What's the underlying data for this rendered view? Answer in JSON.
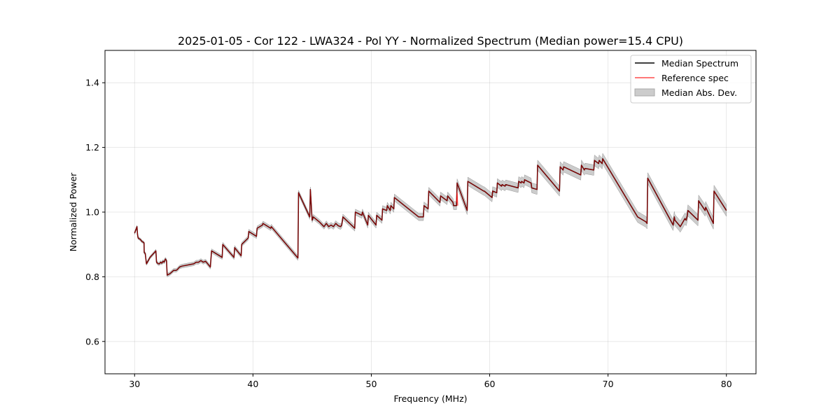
{
  "chart_data": {
    "type": "line",
    "title": "2025-01-05 - Cor 122 - LWA324 - Pol YY - Normalized Spectrum (Median power=15.4 CPU)",
    "xlabel": "Frequency (MHz)",
    "ylabel": "Normalized Power",
    "xlim": [
      27.5,
      82.5
    ],
    "ylim": [
      0.5,
      1.5
    ],
    "xticks": [
      30,
      40,
      50,
      60,
      70,
      80
    ],
    "yticks": [
      0.6,
      0.8,
      1.0,
      1.2,
      1.4
    ],
    "grid": true,
    "legend_position": "top-right",
    "series": [
      {
        "name": "Median Spectrum",
        "color": "#000000",
        "x": [
          30.0,
          30.2,
          30.25,
          30.3,
          30.5,
          30.6,
          30.8,
          30.81,
          30.9,
          31.0,
          31.05,
          31.3,
          31.8,
          31.85,
          32.0,
          32.1,
          32.2,
          32.3,
          32.4,
          32.5,
          32.6,
          32.7,
          32.75,
          33.0,
          33.3,
          33.5,
          33.6,
          33.8,
          34.0,
          35.0,
          35.2,
          35.4,
          35.6,
          35.8,
          36.0,
          36.4,
          36.5,
          37.4,
          37.45,
          38.4,
          38.45,
          39.0,
          39.05,
          39.6,
          39.65,
          40.3,
          40.35,
          40.8,
          40.85,
          41.5,
          41.55,
          43.8,
          43.85,
          44.8,
          44.85,
          45.0,
          45.05,
          45.1,
          45.6,
          46.0,
          46.2,
          46.4,
          46.6,
          46.8,
          47.0,
          47.2,
          47.4,
          47.5,
          47.6,
          48.6,
          48.65,
          49.2,
          49.25,
          49.7,
          49.75,
          50.4,
          50.45,
          50.9,
          50.95,
          51.3,
          51.35,
          51.6,
          51.65,
          51.9,
          51.95,
          54.0,
          54.05,
          54.4,
          54.45,
          54.8,
          54.85,
          55.8,
          55.85,
          56.4,
          56.45,
          56.9,
          56.95,
          57.2,
          57.25,
          58.1,
          58.15,
          59.5,
          59.55,
          60.2,
          60.25,
          60.6,
          60.65,
          61.0,
          61.05,
          61.3,
          61.35,
          62.4,
          62.45,
          62.65,
          62.7,
          62.9,
          62.95,
          63.5,
          63.55,
          64.0,
          64.05,
          65.9,
          65.95,
          66.2,
          66.25,
          67.7,
          67.75,
          68.0,
          68.05,
          68.8,
          68.85,
          69.2,
          69.25,
          69.5,
          69.55,
          72.5,
          73.2,
          73.3,
          73.35,
          75.5,
          75.6,
          75.65,
          76.0,
          76.1,
          76.5,
          76.6,
          76.7,
          76.75,
          77.6,
          77.65,
          78.2,
          78.25,
          78.9,
          78.95,
          80.0
        ],
        "y": [
          0.935,
          0.955,
          0.93,
          0.92,
          0.915,
          0.91,
          0.905,
          0.875,
          0.872,
          0.84,
          0.843,
          0.86,
          0.88,
          0.845,
          0.84,
          0.84,
          0.845,
          0.842,
          0.848,
          0.845,
          0.855,
          0.85,
          0.805,
          0.81,
          0.82,
          0.82,
          0.822,
          0.83,
          0.833,
          0.84,
          0.845,
          0.845,
          0.85,
          0.845,
          0.848,
          0.83,
          0.88,
          0.86,
          0.9,
          0.86,
          0.89,
          0.865,
          0.9,
          0.92,
          0.94,
          0.925,
          0.95,
          0.96,
          0.965,
          0.95,
          0.955,
          0.858,
          1.06,
          0.985,
          1.07,
          0.975,
          0.98,
          0.985,
          0.97,
          0.955,
          0.965,
          0.955,
          0.96,
          0.955,
          0.965,
          0.958,
          0.955,
          0.96,
          0.985,
          0.95,
          1.0,
          0.99,
          1.0,
          0.96,
          0.99,
          0.96,
          0.99,
          0.975,
          1.01,
          1.005,
          1.02,
          1.005,
          1.02,
          1.01,
          1.045,
          0.985,
          0.985,
          0.985,
          1.02,
          1.01,
          1.065,
          1.03,
          1.05,
          1.035,
          1.05,
          1.03,
          1.02,
          1.02,
          1.09,
          1.005,
          1.095,
          1.065,
          1.065,
          1.045,
          1.065,
          1.06,
          1.09,
          1.08,
          1.085,
          1.08,
          1.085,
          1.075,
          1.095,
          1.09,
          1.095,
          1.09,
          1.1,
          1.09,
          1.075,
          1.07,
          1.145,
          1.065,
          1.14,
          1.13,
          1.14,
          1.115,
          1.145,
          1.13,
          1.135,
          1.13,
          1.16,
          1.15,
          1.16,
          1.15,
          1.165,
          0.985,
          0.97,
          0.965,
          1.105,
          0.96,
          0.985,
          0.975,
          0.96,
          0.955,
          0.98,
          0.975,
          0.99,
          1.005,
          0.975,
          1.035,
          1.005,
          1.015,
          0.965,
          1.065,
          1.005
        ]
      },
      {
        "name": "Reference spec",
        "color": "#ff0000",
        "x": [
          57.2,
          57.25,
          57.3
        ],
        "y": [
          1.03,
          1.06,
          1.02
        ]
      }
    ],
    "band": {
      "name": "Median Abs. Dev.",
      "color": "#bbbbbb",
      "width": [
        0.004,
        0.006,
        0.008,
        0.012,
        0.016,
        0.018
      ]
    },
    "legend": [
      {
        "label": "Median Spectrum",
        "kind": "line",
        "color": "#000000"
      },
      {
        "label": "Reference spec",
        "kind": "line",
        "color": "#ff0000"
      },
      {
        "label": "Median Abs. Dev.",
        "kind": "patch",
        "color": "#bbbbbb"
      }
    ]
  }
}
